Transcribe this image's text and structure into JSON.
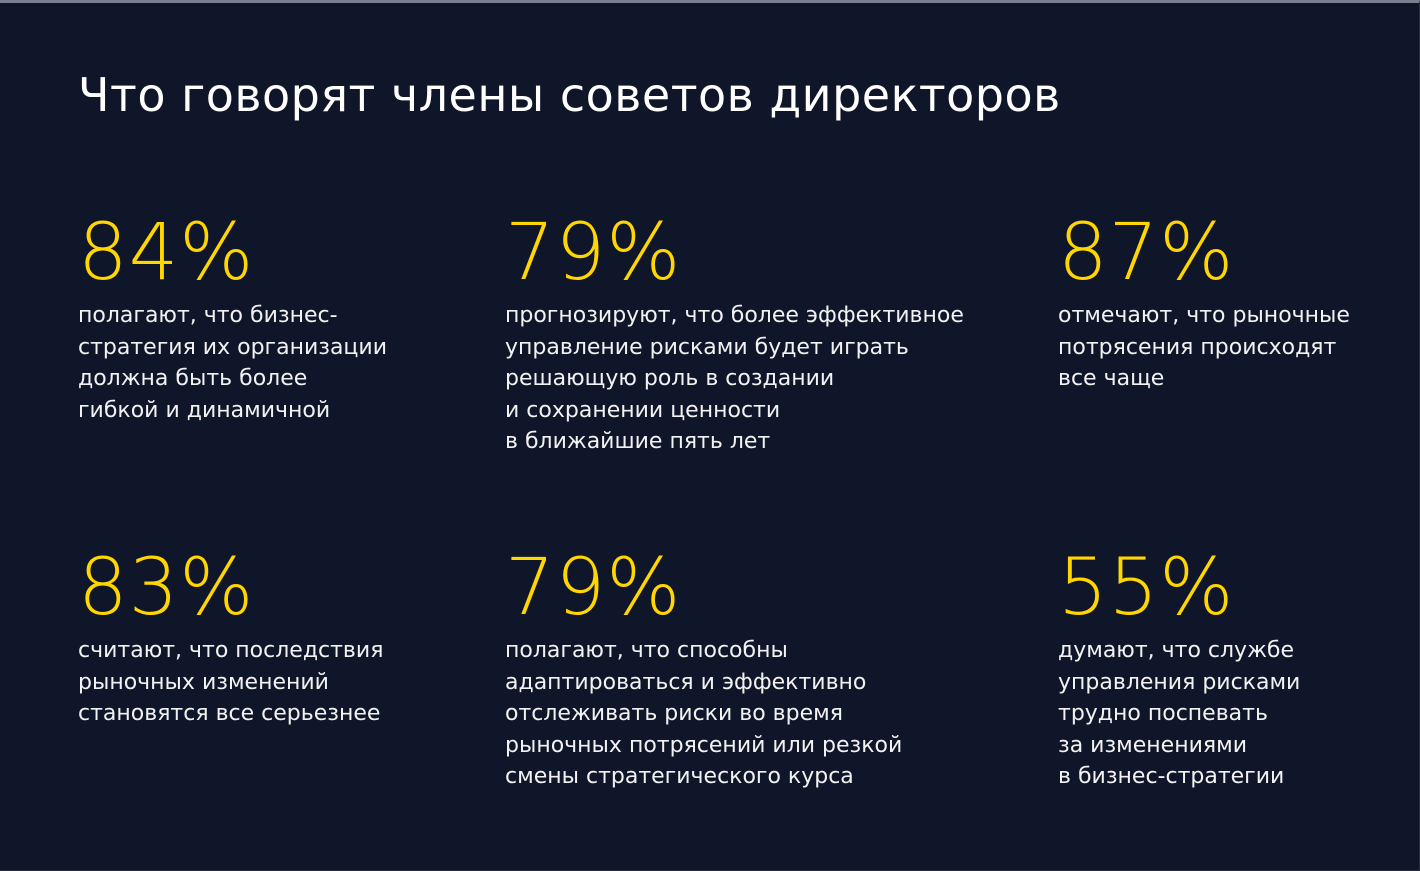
{
  "page": {
    "title": "Что говорят члены советов директоров"
  },
  "colors": {
    "background": "#10162a",
    "accent": "#ffd600",
    "text": "#ffffff"
  },
  "stats": [
    {
      "value": "84%",
      "text": "полагают, что бизнес-\nстратегия их организации\nдолжна быть более\nгибкой и динамичной"
    },
    {
      "value": "79%",
      "text": "прогнозируют, что более эффективное\nуправление рисками будет играть\nрешающую роль в создании\nи сохранении ценности\nв ближайшие пять лет"
    },
    {
      "value": "87%",
      "text": "отмечают, что рыночные\nпотрясения происходят\nвсе чаще"
    },
    {
      "value": "83%",
      "text": "считают, что последствия\nрыночных изменений\nстановятся все серьезнее"
    },
    {
      "value": "79%",
      "text": "полагают, что способны\nадаптироваться и эффективно\nотслеживать риски во время\nрыночных потрясений или резкой\nсмены стратегического курса"
    },
    {
      "value": "55%",
      "text": "думают, что службе\nуправления рисками\nтрудно поспевать\nза изменениями\nв бизнес-стратегии"
    }
  ]
}
